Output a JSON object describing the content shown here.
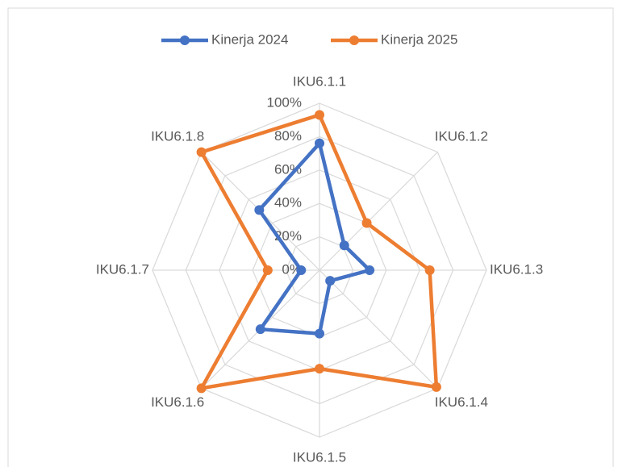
{
  "chart_data": {
    "type": "radar",
    "categories": [
      "IKU6.1.1",
      "IKU6.1.2",
      "IKU6.1.3",
      "IKU6.1.4",
      "IKU6.1.5",
      "IKU6.1.6",
      "IKU6.1.7",
      "IKU6.1.8"
    ],
    "series": [
      {
        "name": "Kinerja 2024",
        "color": "#4472c4",
        "values": [
          76,
          21,
          30,
          9,
          38,
          50,
          11,
          51
        ]
      },
      {
        "name": "Kinerja 2025",
        "color": "#ed7d31",
        "values": [
          93,
          40,
          66,
          99,
          59,
          100,
          31,
          100
        ]
      }
    ],
    "ylim": [
      0,
      100
    ],
    "yticks": [
      {
        "value": 0,
        "label": "0%"
      },
      {
        "value": 20,
        "label": "20%"
      },
      {
        "value": 40,
        "label": "40%"
      },
      {
        "value": 60,
        "label": "60%"
      },
      {
        "value": 80,
        "label": "80%"
      },
      {
        "value": 100,
        "label": "100%"
      }
    ],
    "grid": true,
    "legend": "top"
  }
}
